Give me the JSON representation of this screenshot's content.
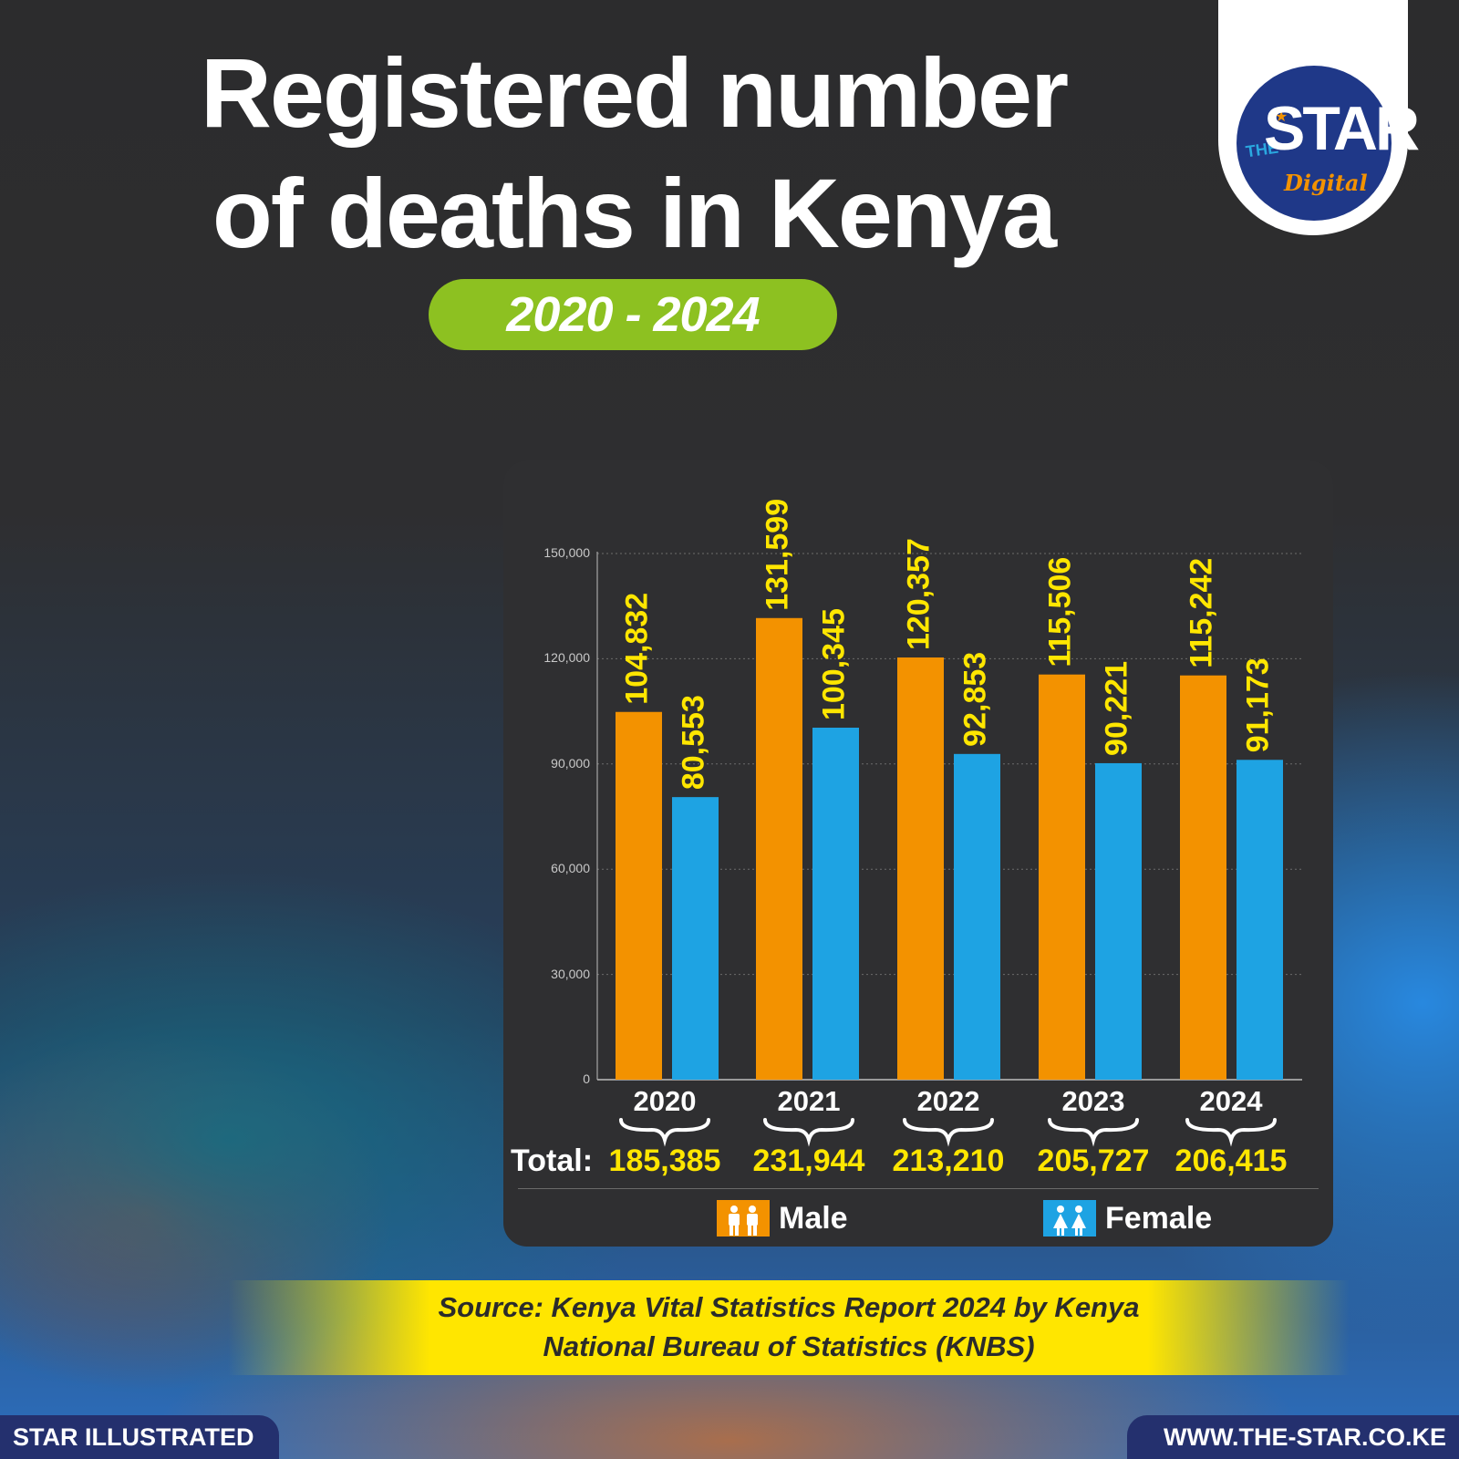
{
  "header": {
    "title_line1": "Registered number",
    "title_line2": "of deaths in Kenya",
    "period": "2020 - 2024"
  },
  "logo": {
    "the": "THE",
    "star": "STAR",
    "digital": "Digital"
  },
  "chart_data": {
    "type": "bar",
    "categories": [
      "2020",
      "2021",
      "2022",
      "2023",
      "2024"
    ],
    "series": [
      {
        "name": "Male",
        "color": "#f39200",
        "values": [
          104832,
          131599,
          120357,
          115506,
          115242
        ],
        "labels": [
          "104,832",
          "131,599",
          "120,357",
          "115,506",
          "115,242"
        ]
      },
      {
        "name": "Female",
        "color": "#1ea3e3",
        "values": [
          80553,
          100345,
          92853,
          90221,
          91173
        ],
        "labels": [
          "80,553",
          "100,345",
          "92,853",
          "90,221",
          "91,173"
        ]
      }
    ],
    "yticks": [
      "0",
      "30,000",
      "60,000",
      "90,000",
      "120,000",
      "150,000"
    ],
    "ylim": [
      0,
      150000
    ],
    "grid": true,
    "legend_position": "bottom",
    "totals_label": "Total:",
    "totals": [
      "185,385",
      "231,944",
      "213,210",
      "205,727",
      "206,415"
    ]
  },
  "source": {
    "line1": "Source: Kenya Vital Statistics Report 2024 by Kenya",
    "line2": "National Bureau of Statistics (KNBS)"
  },
  "footer": {
    "left": "STAR ILLUSTRATED",
    "right": "WWW.THE-STAR.CO.KE"
  },
  "colors": {
    "male": "#f39200",
    "female": "#1ea3e3",
    "accent_green": "#8dc121",
    "value_label": "#ffe600"
  }
}
